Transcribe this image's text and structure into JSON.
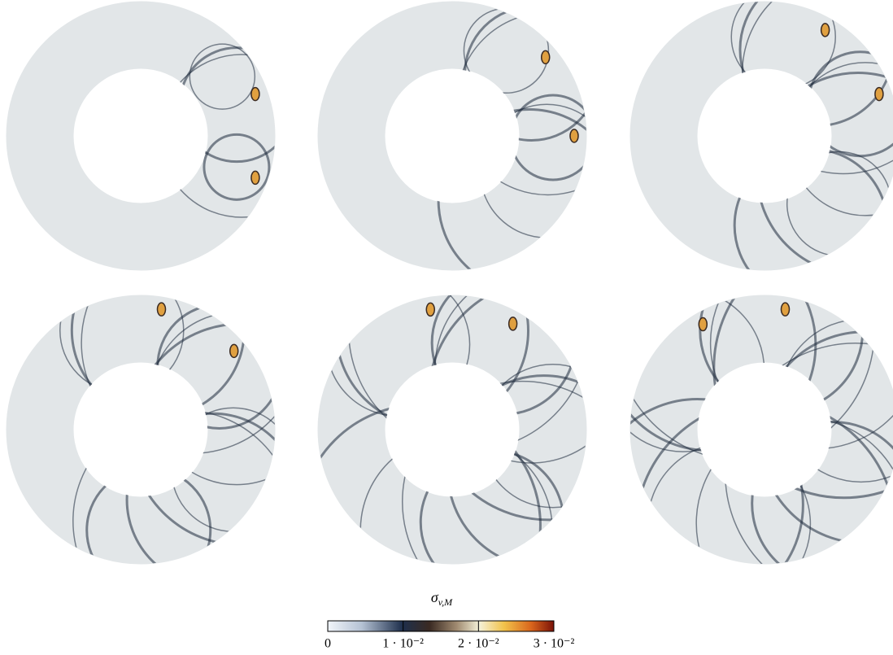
{
  "colorbar": {
    "label": "σ",
    "label_subscript": "v,M",
    "lim": [
      0,
      0.03
    ],
    "ticks": [
      0,
      {
        "value": 0.01,
        "label": "1 · 10⁻²"
      },
      {
        "value": 0.02,
        "label": "2 · 10⁻²"
      },
      {
        "value": 0.03,
        "label": "3 · 10⁻²"
      }
    ]
  }
}
